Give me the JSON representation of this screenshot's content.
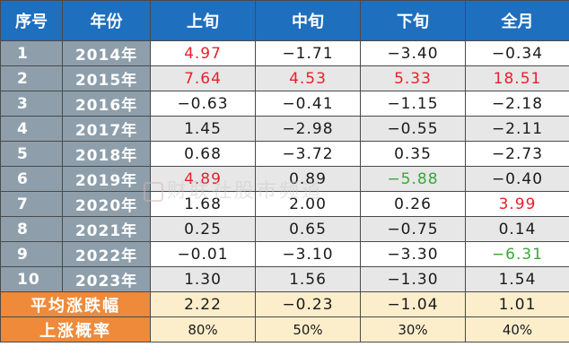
{
  "headers": [
    "序号",
    "年份",
    "上旬",
    "中旬",
    "下旬",
    "全月"
  ],
  "rows": [
    {
      "idx": "1",
      "year": "2014年",
      "v": [
        "4.97",
        "−1.71",
        "−3.40",
        "−0.34"
      ],
      "c": [
        "pos",
        "",
        "",
        ""
      ]
    },
    {
      "idx": "2",
      "year": "2015年",
      "v": [
        "7.64",
        "4.53",
        "5.33",
        "18.51"
      ],
      "c": [
        "pos",
        "pos",
        "pos",
        "pos"
      ]
    },
    {
      "idx": "3",
      "year": "2016年",
      "v": [
        "−0.63",
        "−0.41",
        "−1.15",
        "−2.18"
      ],
      "c": [
        "",
        "",
        "",
        ""
      ]
    },
    {
      "idx": "4",
      "year": "2017年",
      "v": [
        "1.45",
        "−2.98",
        "−0.55",
        "−2.11"
      ],
      "c": [
        "",
        "",
        "",
        ""
      ]
    },
    {
      "idx": "5",
      "year": "2018年",
      "v": [
        "0.68",
        "−3.72",
        "0.35",
        "−2.73"
      ],
      "c": [
        "",
        "",
        "",
        ""
      ]
    },
    {
      "idx": "6",
      "year": "2019年",
      "v": [
        "4.89",
        "0.89",
        "−5.88",
        "−0.40"
      ],
      "c": [
        "pos",
        "",
        "neg-green",
        ""
      ]
    },
    {
      "idx": "7",
      "year": "2020年",
      "v": [
        "1.68",
        "2.00",
        "0.26",
        "3.99"
      ],
      "c": [
        "",
        "",
        "",
        "pos"
      ]
    },
    {
      "idx": "8",
      "year": "2021年",
      "v": [
        "0.25",
        "0.65",
        "−0.75",
        "0.14"
      ],
      "c": [
        "",
        "",
        "",
        ""
      ]
    },
    {
      "idx": "9",
      "year": "2022年",
      "v": [
        "−0.01",
        "−3.10",
        "−3.30",
        "−6.31"
      ],
      "c": [
        "",
        "",
        "",
        "neg-green"
      ]
    },
    {
      "idx": "10",
      "year": "2023年",
      "v": [
        "1.30",
        "1.56",
        "−1.30",
        "1.54"
      ],
      "c": [
        "",
        "",
        "",
        ""
      ]
    }
  ],
  "summary": {
    "avg_label": "平均涨跌幅",
    "avg": [
      "2.22",
      "−0.23",
      "−1.04",
      "1.01"
    ],
    "rate_label": "上涨概率",
    "rate": [
      "80%",
      "50%",
      "30%",
      "40%"
    ]
  },
  "watermark": "财联社股市频道",
  "colors": {
    "header": "#1f6fbf",
    "index_col": "#8e9fab",
    "summary_label": "#ee8a3a",
    "summary_bg": "#fdeecb",
    "positive": "#e8212a",
    "negative_highlight": "#3ea53a"
  }
}
